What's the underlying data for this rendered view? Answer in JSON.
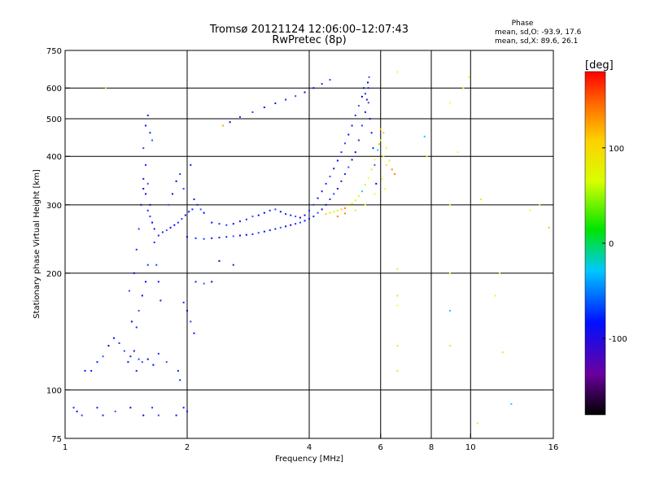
{
  "chart_data": {
    "type": "scatter",
    "title": "Tromsø 20121124 12:06:00–12:07:43",
    "subtitle": "RwPretec (8p)",
    "xlabel": "Frequency [MHz]",
    "ylabel": "Stationary phase Virtual Height [km]",
    "x_scale": "log",
    "y_scale": "log",
    "xlim": [
      1,
      16
    ],
    "ylim": [
      75,
      750
    ],
    "x_ticks": [
      1,
      2,
      4,
      6,
      8,
      10,
      16
    ],
    "y_ticks": [
      75,
      100,
      200,
      300,
      400,
      500,
      600,
      750
    ],
    "x_grid": [
      2,
      4,
      6,
      8,
      10
    ],
    "y_grid": [
      100,
      200,
      300,
      400,
      500,
      600
    ],
    "grid": true,
    "stats": {
      "heading": "Phase",
      "line_o": "mean, sd,O: -93.9, 17.6",
      "line_x": "mean, sd,X:  89.6, 26.1"
    },
    "colorbar": {
      "label": "[deg]",
      "min": -180,
      "max": 180,
      "ticks": [
        100,
        0,
        -100
      ]
    },
    "series": [
      {
        "points": [
          [
            1.07,
            88
          ],
          [
            1.05,
            90
          ],
          [
            1.1,
            86
          ],
          [
            1.12,
            112
          ],
          [
            1.16,
            112
          ],
          [
            1.2,
            118
          ],
          [
            1.24,
            122
          ],
          [
            1.28,
            130
          ],
          [
            1.32,
            136
          ],
          [
            1.36,
            132
          ],
          [
            1.4,
            126
          ],
          [
            1.43,
            118
          ],
          [
            1.45,
            122
          ],
          [
            1.5,
            112
          ],
          [
            1.55,
            118
          ],
          [
            1.6,
            120
          ],
          [
            1.65,
            116
          ],
          [
            1.7,
            124
          ],
          [
            1.52,
            120
          ],
          [
            1.48,
            126
          ],
          [
            1.2,
            90
          ],
          [
            1.24,
            86
          ],
          [
            1.33,
            88
          ],
          [
            1.45,
            90
          ],
          [
            1.56,
            86
          ],
          [
            1.64,
            90
          ],
          [
            1.7,
            86
          ],
          [
            1.88,
            86
          ],
          [
            1.96,
            90
          ],
          [
            2.0,
            88
          ],
          [
            1.44,
            180
          ],
          [
            1.46,
            150
          ],
          [
            1.48,
            200
          ],
          [
            1.5,
            230
          ],
          [
            1.52,
            260
          ],
          [
            1.54,
            300
          ],
          [
            1.56,
            350
          ],
          [
            1.58,
            380
          ],
          [
            1.6,
            340
          ],
          [
            1.62,
            300
          ],
          [
            1.64,
            270
          ],
          [
            1.66,
            240
          ],
          [
            1.68,
            210
          ],
          [
            1.7,
            190
          ],
          [
            1.72,
            170
          ],
          [
            1.5,
            145
          ],
          [
            1.52,
            160
          ],
          [
            1.55,
            175
          ],
          [
            1.58,
            190
          ],
          [
            1.6,
            210
          ],
          [
            1.56,
            420
          ],
          [
            1.58,
            480
          ],
          [
            1.6,
            510
          ],
          [
            1.62,
            460
          ],
          [
            1.64,
            440
          ],
          [
            1.56,
            330
          ],
          [
            1.58,
            320
          ],
          [
            1.6,
            290
          ],
          [
            1.62,
            280
          ],
          [
            1.66,
            260
          ],
          [
            1.7,
            250
          ],
          [
            1.74,
            255
          ],
          [
            1.78,
            258
          ],
          [
            1.82,
            262
          ],
          [
            1.86,
            266
          ],
          [
            1.9,
            270
          ],
          [
            1.94,
            276
          ],
          [
            1.98,
            282
          ],
          [
            2.02,
            288
          ],
          [
            2.06,
            292
          ],
          [
            1.8,
            300
          ],
          [
            1.84,
            320
          ],
          [
            1.88,
            345
          ],
          [
            1.92,
            360
          ],
          [
            1.96,
            330
          ],
          [
            2.04,
            380
          ],
          [
            2.08,
            310
          ],
          [
            2.12,
            300
          ],
          [
            2.16,
            292
          ],
          [
            2.2,
            286
          ],
          [
            2.0,
            248
          ],
          [
            2.1,
            246
          ],
          [
            2.2,
            245
          ],
          [
            2.3,
            246
          ],
          [
            2.4,
            247
          ],
          [
            2.5,
            248
          ],
          [
            2.6,
            249
          ],
          [
            2.7,
            250
          ],
          [
            2.8,
            251
          ],
          [
            2.9,
            252
          ],
          [
            3.0,
            254
          ],
          [
            3.1,
            256
          ],
          [
            3.2,
            258
          ],
          [
            3.3,
            260
          ],
          [
            3.4,
            262
          ],
          [
            3.5,
            264
          ],
          [
            3.6,
            266
          ],
          [
            3.7,
            268
          ],
          [
            3.8,
            270
          ],
          [
            3.9,
            273
          ],
          [
            4.0,
            276
          ],
          [
            4.1,
            280
          ],
          [
            4.2,
            286
          ],
          [
            4.3,
            292
          ],
          [
            4.4,
            300
          ],
          [
            4.5,
            310
          ],
          [
            4.6,
            320
          ],
          [
            4.7,
            330
          ],
          [
            4.8,
            345
          ],
          [
            4.9,
            360
          ],
          [
            5.0,
            375
          ],
          [
            5.1,
            392
          ],
          [
            5.2,
            410
          ],
          [
            5.3,
            440
          ],
          [
            5.4,
            480
          ],
          [
            5.5,
            520
          ],
          [
            5.55,
            560
          ],
          [
            5.6,
            600
          ],
          [
            5.62,
            640
          ],
          [
            5.58,
            620
          ],
          [
            2.3,
            270
          ],
          [
            2.4,
            268
          ],
          [
            2.5,
            266
          ],
          [
            2.6,
            268
          ],
          [
            2.7,
            272
          ],
          [
            2.8,
            275
          ],
          [
            2.9,
            280
          ],
          [
            3.0,
            282
          ],
          [
            3.1,
            286
          ],
          [
            3.2,
            290
          ],
          [
            3.3,
            292
          ],
          [
            3.4,
            288
          ],
          [
            3.5,
            284
          ],
          [
            3.6,
            282
          ],
          [
            3.7,
            280
          ],
          [
            3.8,
            278
          ],
          [
            3.9,
            282
          ],
          [
            4.0,
            290
          ],
          [
            4.1,
            300
          ],
          [
            4.2,
            312
          ],
          [
            4.3,
            325
          ],
          [
            4.4,
            340
          ],
          [
            4.5,
            355
          ],
          [
            4.6,
            372
          ],
          [
            4.7,
            390
          ],
          [
            4.8,
            410
          ],
          [
            4.9,
            432
          ],
          [
            5.0,
            455
          ],
          [
            5.1,
            480
          ],
          [
            5.2,
            510
          ],
          [
            5.3,
            540
          ],
          [
            5.4,
            570
          ],
          [
            5.45,
            600
          ],
          [
            5.5,
            580
          ],
          [
            5.6,
            550
          ],
          [
            5.65,
            500
          ],
          [
            5.7,
            460
          ],
          [
            5.75,
            420
          ],
          [
            5.8,
            380
          ],
          [
            5.85,
            340
          ],
          [
            2.55,
            490
          ],
          [
            2.7,
            505
          ],
          [
            2.9,
            520
          ],
          [
            3.1,
            535
          ],
          [
            3.3,
            548
          ],
          [
            3.5,
            560
          ],
          [
            3.7,
            572
          ],
          [
            3.9,
            585
          ],
          [
            4.1,
            600
          ],
          [
            4.3,
            615
          ],
          [
            4.5,
            630
          ],
          [
            2.45,
            480
          ],
          [
            2.6,
            210
          ],
          [
            2.1,
            190
          ],
          [
            2.2,
            188
          ],
          [
            2.3,
            190
          ],
          [
            2.0,
            160
          ],
          [
            1.96,
            168
          ],
          [
            2.04,
            150
          ],
          [
            2.08,
            140
          ],
          [
            1.9,
            112
          ],
          [
            1.92,
            106
          ],
          [
            1.78,
            118
          ],
          [
            2.4,
            215
          ]
        ]
      },
      {
        "points": [
          [
            4.4,
            284
          ],
          [
            4.5,
            286
          ],
          [
            4.6,
            288
          ],
          [
            4.7,
            290
          ],
          [
            4.8,
            292
          ],
          [
            4.9,
            294
          ],
          [
            5.0,
            298
          ],
          [
            5.1,
            302
          ],
          [
            5.2,
            308
          ],
          [
            5.3,
            316
          ],
          [
            5.4,
            325
          ],
          [
            5.5,
            338
          ],
          [
            5.6,
            352
          ],
          [
            5.7,
            370
          ],
          [
            5.8,
            392
          ],
          [
            5.9,
            415
          ],
          [
            6.0,
            440
          ],
          [
            6.1,
            460
          ],
          [
            6.2,
            420
          ],
          [
            6.3,
            390
          ],
          [
            6.4,
            370
          ],
          [
            6.5,
            360
          ],
          [
            6.2,
            380
          ],
          [
            6.1,
            400
          ],
          [
            6.0,
            470
          ],
          [
            5.95,
            430
          ],
          [
            6.05,
            350
          ],
          [
            6.15,
            330
          ],
          [
            4.7,
            280
          ],
          [
            4.9,
            285
          ],
          [
            5.2,
            290
          ],
          [
            5.5,
            300
          ],
          [
            5.8,
            320
          ],
          [
            6.6,
            660
          ],
          [
            6.6,
            205
          ],
          [
            6.6,
            130
          ],
          [
            6.6,
            112
          ],
          [
            6.6,
            175
          ],
          [
            6.6,
            165
          ],
          [
            7.7,
            450
          ],
          [
            7.8,
            400
          ],
          [
            8.9,
            550
          ],
          [
            8.9,
            300
          ],
          [
            8.9,
            200
          ],
          [
            8.9,
            160
          ],
          [
            8.9,
            130
          ],
          [
            9.3,
            410
          ],
          [
            9.6,
            600
          ],
          [
            9.9,
            640
          ],
          [
            10.6,
            310
          ],
          [
            11.5,
            175
          ],
          [
            11.8,
            200
          ],
          [
            12.0,
            125
          ],
          [
            12.6,
            92
          ],
          [
            14.0,
            290
          ],
          [
            14.8,
            300
          ],
          [
            15.6,
            262
          ],
          [
            2.45,
            480
          ],
          [
            1.26,
            600
          ],
          [
            10.4,
            82
          ]
        ]
      }
    ]
  }
}
